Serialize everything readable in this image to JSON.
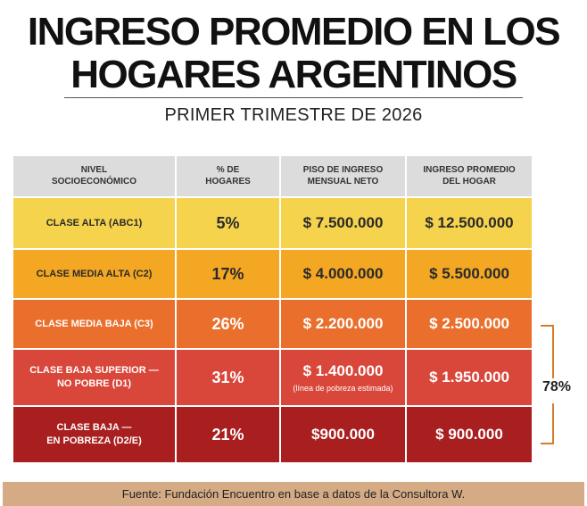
{
  "title": {
    "line1": "INGRESO PROMEDIO EN LOS",
    "line2": "HOGARES ARGENTINOS"
  },
  "subtitle": "PRIMER TRIMESTRE DE 2026",
  "table": {
    "headers": [
      [
        "NIVEL",
        "SOCIOECONÓMICO"
      ],
      [
        "% DE",
        "HOGARES"
      ],
      [
        "PISO DE INGRESO",
        "MENSUAL NETO"
      ],
      [
        "INGRESO PROMEDIO",
        "DEL HOGAR"
      ]
    ],
    "rows": [
      {
        "label": [
          "CLASE ALTA (ABC1)"
        ],
        "percent": "5%",
        "floor": "$ 7.500.000",
        "floor_note": "",
        "average": "$ 12.500.000",
        "color": "#f5d34d"
      },
      {
        "label": [
          "CLASE MEDIA ALTA (C2)"
        ],
        "percent": "17%",
        "floor": "$ 4.000.000",
        "floor_note": "",
        "average": "$ 5.500.000",
        "color": "#f3a722"
      },
      {
        "label": [
          "CLASE MEDIA BAJA (C3)"
        ],
        "percent": "26%",
        "floor": "$ 2.200.000",
        "floor_note": "",
        "average": "$ 2.500.000",
        "color": "#ea6f2c"
      },
      {
        "label": [
          "CLASE BAJA SUPERIOR —",
          "NO POBRE (D1)"
        ],
        "percent": "31%",
        "floor": "$ 1.400.000",
        "floor_note": "(línea de pobreza estimada)",
        "average": "$ 1.950.000",
        "color": "#d9473a"
      },
      {
        "label": [
          "CLASE BAJA —",
          "EN POBREZA (D2/E)"
        ],
        "percent": "21%",
        "floor": "$900.000",
        "floor_note": "",
        "average": "$ 900.000",
        "color": "#a91e1f"
      }
    ]
  },
  "bracket": {
    "label": "78%",
    "color": "#d97a2c"
  },
  "footer": {
    "text": "Fuente: Fundación Encuentro en base a datos de la Consultora W.",
    "color": "#d4ab85"
  }
}
